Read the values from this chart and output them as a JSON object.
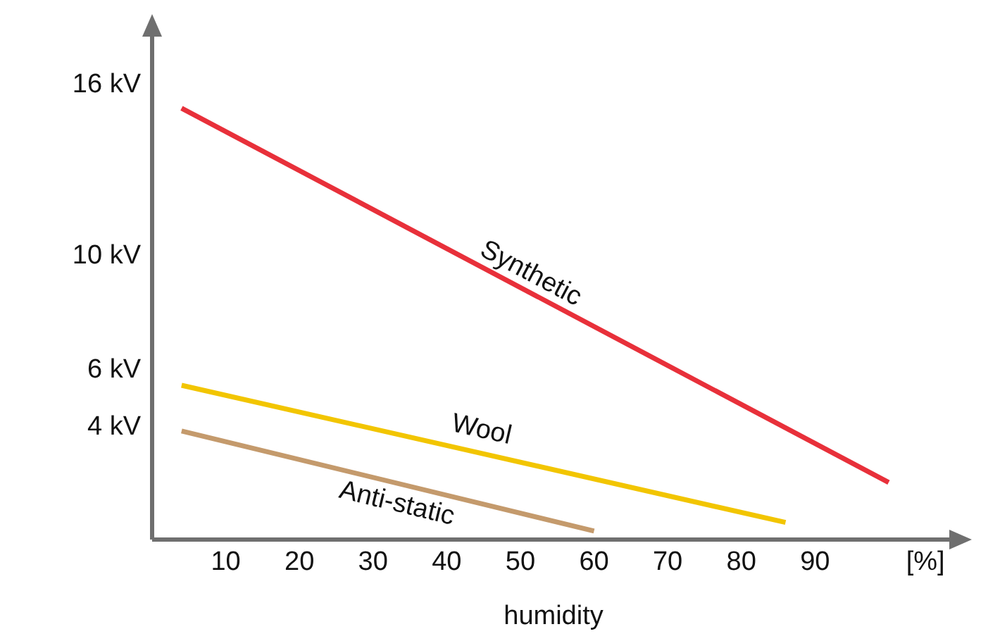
{
  "chart_data": {
    "type": "line",
    "xlabel": "humidity",
    "xlim": [
      0,
      109
    ],
    "ylim": [
      0,
      18
    ],
    "xticks": [
      10,
      20,
      30,
      40,
      50,
      60,
      70,
      80,
      90,
      {
        "value": 105,
        "label": "[%]"
      }
    ],
    "yticks": [
      {
        "value": 4,
        "label": "4 kV"
      },
      {
        "value": 6,
        "label": "6 kV"
      },
      {
        "value": 10,
        "label": "10 kV"
      },
      {
        "value": 16,
        "label": "16 kV"
      }
    ],
    "grid": false,
    "legend": false,
    "marker": "none",
    "line_style": "solid",
    "series": [
      {
        "name": "Synthetic",
        "color": "#e8303a",
        "x": [
          4,
          100
        ],
        "values": [
          15.1,
          2
        ]
      },
      {
        "name": "Wool",
        "color": "#f2c500",
        "x": [
          4,
          86
        ],
        "values": [
          5.4,
          0.6
        ]
      },
      {
        "name": "Anti-static",
        "color": "#c49a6c",
        "x": [
          4,
          60
        ],
        "values": [
          3.8,
          0.3
        ]
      }
    ]
  }
}
